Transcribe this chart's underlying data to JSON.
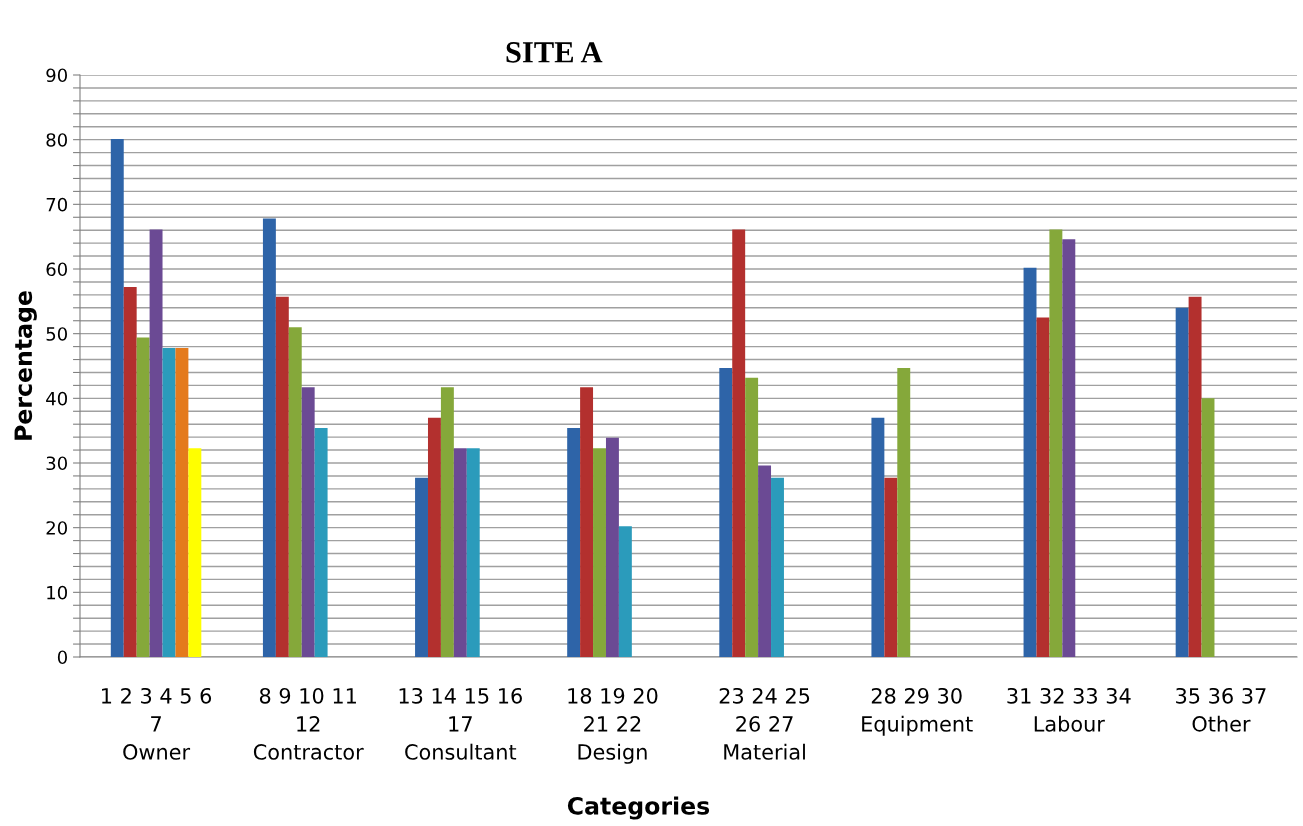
{
  "chart_data": {
    "type": "bar",
    "title": "SITE A",
    "xlabel": "Categories",
    "ylabel": "Percentage",
    "categories": [
      "1 2 3 4 5 6\n7\nOwner",
      "8 9 10 11\n12\nContractor",
      "13 14 15 16\n17\nConsultant",
      "18 19 20\n21 22\nDesign",
      "23 24 25\n26 27\nMaterial",
      "28 29 30\nEquipment",
      "31 32 33 34\nLabour",
      "35 36 37\nOther"
    ],
    "series": [
      {
        "color": "#2e64a8",
        "values": [
          80.1,
          67.8,
          27.7,
          35.4,
          44.7,
          37.0,
          60.2,
          54.0
        ]
      },
      {
        "color": "#b3302e",
        "values": [
          57.2,
          55.7,
          37.0,
          41.7,
          66.1,
          27.7,
          52.5,
          55.7
        ]
      },
      {
        "color": "#85a83a",
        "values": [
          49.4,
          51.0,
          41.7,
          32.3,
          43.2,
          44.7,
          66.1,
          40.0
        ]
      },
      {
        "color": "#6b4a94",
        "values": [
          66.1,
          41.7,
          32.3,
          33.9,
          29.6,
          null,
          64.6,
          null
        ]
      },
      {
        "color": "#2b9bbb",
        "values": [
          47.8,
          35.4,
          32.3,
          20.2,
          27.7,
          null,
          null,
          null
        ]
      },
      {
        "color": "#e47a1c",
        "values": [
          47.8,
          null,
          null,
          null,
          null,
          null,
          null,
          null
        ]
      },
      {
        "color": "#ffff00",
        "values": [
          32.3,
          null,
          null,
          null,
          null,
          null,
          null,
          null
        ]
      }
    ],
    "ylim": [
      0,
      90
    ],
    "yticks": [
      0,
      {
        "value": 2,
        "label": null
      },
      {
        "value": 4,
        "label": null
      },
      {
        "value": 6,
        "label": null
      },
      {
        "value": 8,
        "label": null
      },
      10,
      {
        "value": 12,
        "label": null
      },
      {
        "value": 14,
        "label": null
      },
      {
        "value": 16,
        "label": null
      },
      {
        "value": 18,
        "label": null
      },
      20,
      {
        "value": 22,
        "label": null
      },
      {
        "value": 24,
        "label": null
      },
      {
        "value": 26,
        "label": null
      },
      {
        "value": 28,
        "label": null
      },
      30,
      {
        "value": 32,
        "label": null
      },
      {
        "value": 34,
        "label": null
      },
      {
        "value": 36,
        "label": null
      },
      {
        "value": 38,
        "label": null
      },
      40,
      {
        "value": 42,
        "label": null
      },
      {
        "value": 44,
        "label": null
      },
      {
        "value": 46,
        "label": null
      },
      {
        "value": 48,
        "label": null
      },
      50,
      {
        "value": 52,
        "label": null
      },
      {
        "value": 54,
        "label": null
      },
      {
        "value": 56,
        "label": null
      },
      {
        "value": 58,
        "label": null
      },
      60,
      {
        "value": 62,
        "label": null
      },
      {
        "value": 64,
        "label": null
      },
      {
        "value": 66,
        "label": null
      },
      {
        "value": 68,
        "label": null
      },
      70,
      {
        "value": 72,
        "label": null
      },
      {
        "value": 74,
        "label": null
      },
      {
        "value": 76,
        "label": null
      },
      {
        "value": 78,
        "label": null
      },
      80,
      {
        "value": 82,
        "label": null
      },
      {
        "value": 84,
        "label": null
      },
      {
        "value": 86,
        "label": null
      },
      {
        "value": 88,
        "label": null
      },
      90
    ],
    "grid": "y",
    "legend": false
  }
}
